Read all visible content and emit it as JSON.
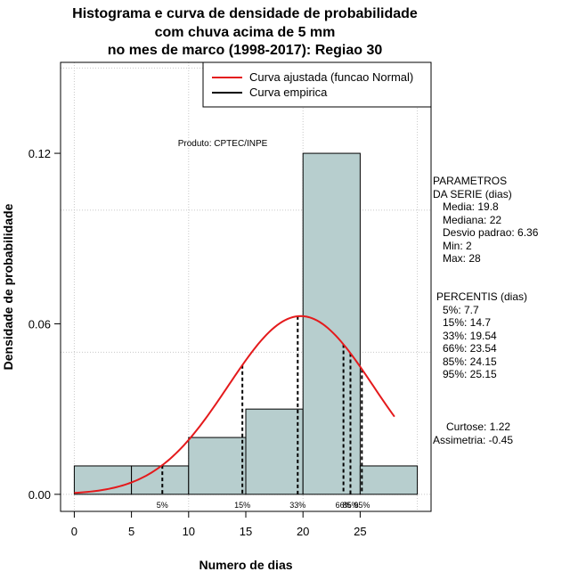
{
  "chart_data": {
    "type": "bar",
    "title": [
      "Histograma e curva de densidade de probabilidade",
      "com chuva acima de 5 mm",
      "no mes de marco (1998-2017): Regiao 30"
    ],
    "xlabel": "Numero de dias",
    "ylabel": "Densidade de probabilidade",
    "xlim": [
      -1.2,
      31.2
    ],
    "ylim": [
      -0.006,
      0.152
    ],
    "x_ticks": [
      0,
      5,
      10,
      15,
      20,
      25
    ],
    "x_tick_labels": [
      "0",
      "5",
      "10",
      "15",
      "20",
      "25"
    ],
    "y_ticks": [
      0.0,
      0.06,
      0.12
    ],
    "y_tick_labels": [
      "0.00",
      "0.06",
      "0.12"
    ],
    "grid": true,
    "bins": [
      {
        "from": 0,
        "to": 5,
        "density": 0.01
      },
      {
        "from": 5,
        "to": 10,
        "density": 0.01
      },
      {
        "from": 10,
        "to": 15,
        "density": 0.02
      },
      {
        "from": 15,
        "to": 20,
        "density": 0.03
      },
      {
        "from": 20,
        "to": 25,
        "density": 0.12
      },
      {
        "from": 25,
        "to": 30,
        "density": 0.01
      }
    ],
    "normal_fit": {
      "mean": 19.8,
      "sd": 6.36,
      "from": 0,
      "to": 28,
      "color": "#e41a1c"
    },
    "percentile_lines": [
      {
        "label": "5%",
        "x": 7.7
      },
      {
        "label": "15%",
        "x": 14.7
      },
      {
        "label": "33%",
        "x": 19.54
      },
      {
        "label": "66%",
        "x": 23.54
      },
      {
        "label": "85%",
        "x": 24.15
      },
      {
        "label": "95%",
        "x": 25.15
      }
    ],
    "legend": {
      "position": "top-right",
      "items": [
        {
          "label": "Curva ajustada (funcao Normal)",
          "color": "#e41a1c"
        },
        {
          "label": "Curva empirica",
          "color": "#000000"
        }
      ]
    },
    "annotation": "Produto: CPTEC/INPE",
    "bar_color": "#b7cece"
  },
  "parameters": {
    "heading": [
      "PARAMETROS",
      "DA SERIE (dias)"
    ],
    "lines": [
      "Media: 19.8",
      "Mediana: 22",
      "Desvio padrao: 6.36",
      "Min: 2",
      "Max: 28"
    ]
  },
  "percentiles": {
    "heading": "PERCENTIS (dias)",
    "lines": [
      "5%: 7.7",
      "15%: 14.7",
      "33%: 19.54",
      "66%: 23.54",
      "85%: 24.15",
      "95%: 25.15"
    ]
  },
  "shape": {
    "lines": [
      "Curtose: 1.22",
      "Assimetria: -0.45"
    ]
  }
}
